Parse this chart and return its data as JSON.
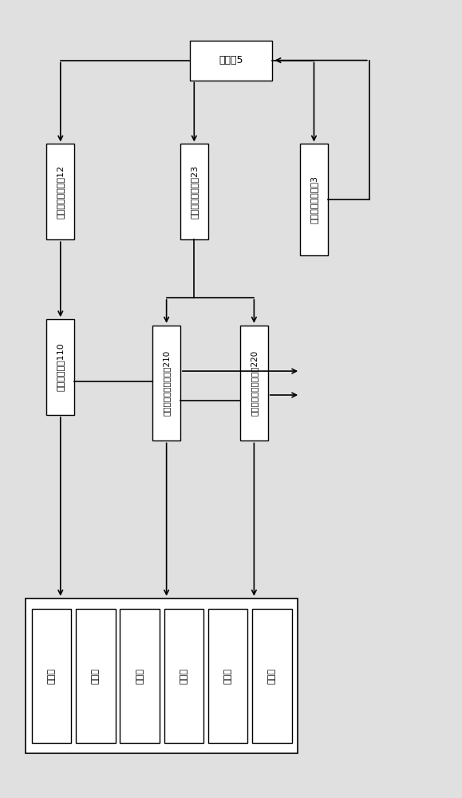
{
  "bg_color": "#e0e0e0",
  "box_facecolor": "#ffffff",
  "box_edgecolor": "#000000",
  "controller_text": "控制器5",
  "series_drv_text": "串联开关驱动单元12",
  "parallel_drv_text": "并联开关驱动单元23",
  "state_detect_text": "开关状态检测模块3",
  "series_sw_text": "串联可控开关110",
  "pos_sw_text": "并联可控正极连接开关210",
  "neg_sw_text": "并联可控负极连接开关220",
  "battery_label": "电池组",
  "n_batteries": 6,
  "font_size_main": 9,
  "font_size_small": 8
}
